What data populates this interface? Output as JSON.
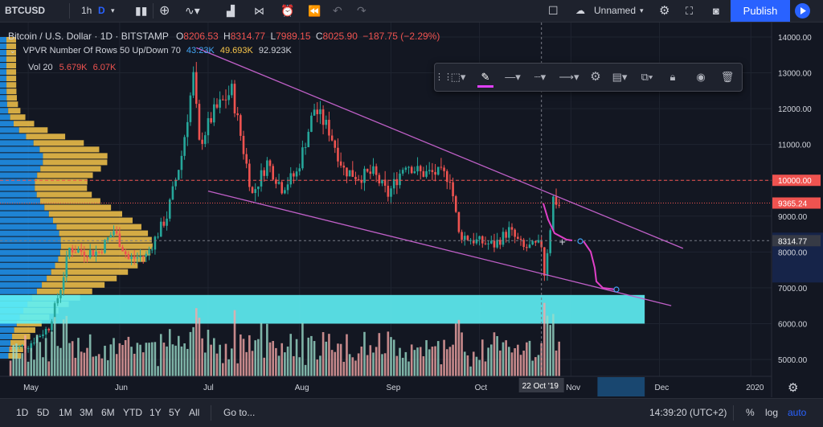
{
  "header": {
    "symbol": "BTCUSD",
    "interval": "1h",
    "interval_active": "D",
    "layout_name": "Unnamed",
    "publish_label": "Publish"
  },
  "legend": {
    "title": "Bitcoin / U.S. Dollar · 1D · BITSTAMP",
    "o_label": "O",
    "o": "8206.53",
    "h_label": "H",
    "h": "8314.77",
    "l_label": "L",
    "l": "7989.15",
    "c_label": "C",
    "c": "8025.90",
    "change": "−187.75 (−2.29%)",
    "vpvr": "VPVR Number Of Rows 50 Up/Down 70",
    "vpvr_v1": "43.23K",
    "vpvr_v2": "49.693K",
    "vpvr_v3": "92.923K",
    "vol": "Vol 20",
    "vol_v1": "5.679K",
    "vol_v2": "6.07K"
  },
  "bottom": {
    "ranges": [
      "1D",
      "5D",
      "1M",
      "3M",
      "6M",
      "YTD",
      "1Y",
      "5Y",
      "All"
    ],
    "goto": "Go to...",
    "time": "14:39:20 (UTC+2)",
    "percent": "%",
    "log": "log",
    "auto": "auto"
  },
  "chart_data": {
    "type": "candlestick",
    "title": "Bitcoin / U.S. Dollar · 1D · BITSTAMP",
    "y_ticks": [
      5000,
      6000,
      7000,
      8000,
      9000,
      10000,
      11000,
      12000,
      13000,
      14000
    ],
    "y_range": [
      4500,
      14200
    ],
    "x_ticks": [
      "May",
      "Jun",
      "Jul",
      "Aug",
      "Sep",
      "Oct",
      "Nov",
      "Dec",
      "2020"
    ],
    "price_labels": [
      {
        "value": 10000,
        "text": "10000.00",
        "color": "#ef5350"
      },
      {
        "value": 9365.24,
        "text": "9365.24",
        "color": "#ef5350"
      },
      {
        "value": 8314.77,
        "text": "8314.77",
        "color": "#363a45"
      }
    ],
    "cursor_date": "22 Oct '19",
    "colors": {
      "up": "#26a69a",
      "down": "#ef5350",
      "channel": "#c060c8",
      "zone": "#5ff0f5",
      "projection": "#e040c8"
    },
    "price_path": [
      [
        "2019-04-25",
        5300
      ],
      [
        "2019-05-01",
        5400
      ],
      [
        "2019-05-08",
        5900
      ],
      [
        "2019-05-12",
        7000
      ],
      [
        "2019-05-15",
        8100
      ],
      [
        "2019-05-20",
        8000
      ],
      [
        "2019-05-25",
        8000
      ],
      [
        "2019-05-30",
        8600
      ],
      [
        "2019-06-04",
        7800
      ],
      [
        "2019-06-10",
        7900
      ],
      [
        "2019-06-17",
        9000
      ],
      [
        "2019-06-22",
        10700
      ],
      [
        "2019-06-26",
        12900
      ],
      [
        "2019-06-28",
        11000
      ],
      [
        "2019-07-03",
        11900
      ],
      [
        "2019-07-09",
        12500
      ],
      [
        "2019-07-16",
        9600
      ],
      [
        "2019-07-21",
        10500
      ],
      [
        "2019-07-26",
        9800
      ],
      [
        "2019-07-31",
        10200
      ],
      [
        "2019-08-06",
        12000
      ],
      [
        "2019-08-11",
        11400
      ],
      [
        "2019-08-16",
        10300
      ],
      [
        "2019-08-21",
        10100
      ],
      [
        "2019-08-26",
        10200
      ],
      [
        "2019-08-31",
        9600
      ],
      [
        "2019-09-06",
        10500
      ],
      [
        "2019-09-11",
        10200
      ],
      [
        "2019-09-16",
        10200
      ],
      [
        "2019-09-21",
        10100
      ],
      [
        "2019-09-24",
        8500
      ],
      [
        "2019-09-30",
        8300
      ],
      [
        "2019-10-06",
        8200
      ],
      [
        "2019-10-11",
        8600
      ],
      [
        "2019-10-16",
        8100
      ],
      [
        "2019-10-22",
        8200
      ],
      [
        "2019-10-23",
        7400
      ],
      [
        "2019-10-25",
        8700
      ],
      [
        "2019-10-26",
        9500
      ],
      [
        "2019-10-28",
        9300
      ]
    ],
    "drawings": [
      {
        "name": "upper-trendline",
        "from": [
          "2019-06-27",
          13700
        ],
        "to": [
          "2019-12-09",
          8100
        ]
      },
      {
        "name": "lower-trendline",
        "from": [
          "2019-07-01",
          9700
        ],
        "to": [
          "2019-12-05",
          6500
        ]
      },
      {
        "name": "support-zone",
        "from": [
          "2019-04-25",
          6800
        ],
        "to": [
          "2019-11-26",
          6000
        ]
      }
    ]
  }
}
